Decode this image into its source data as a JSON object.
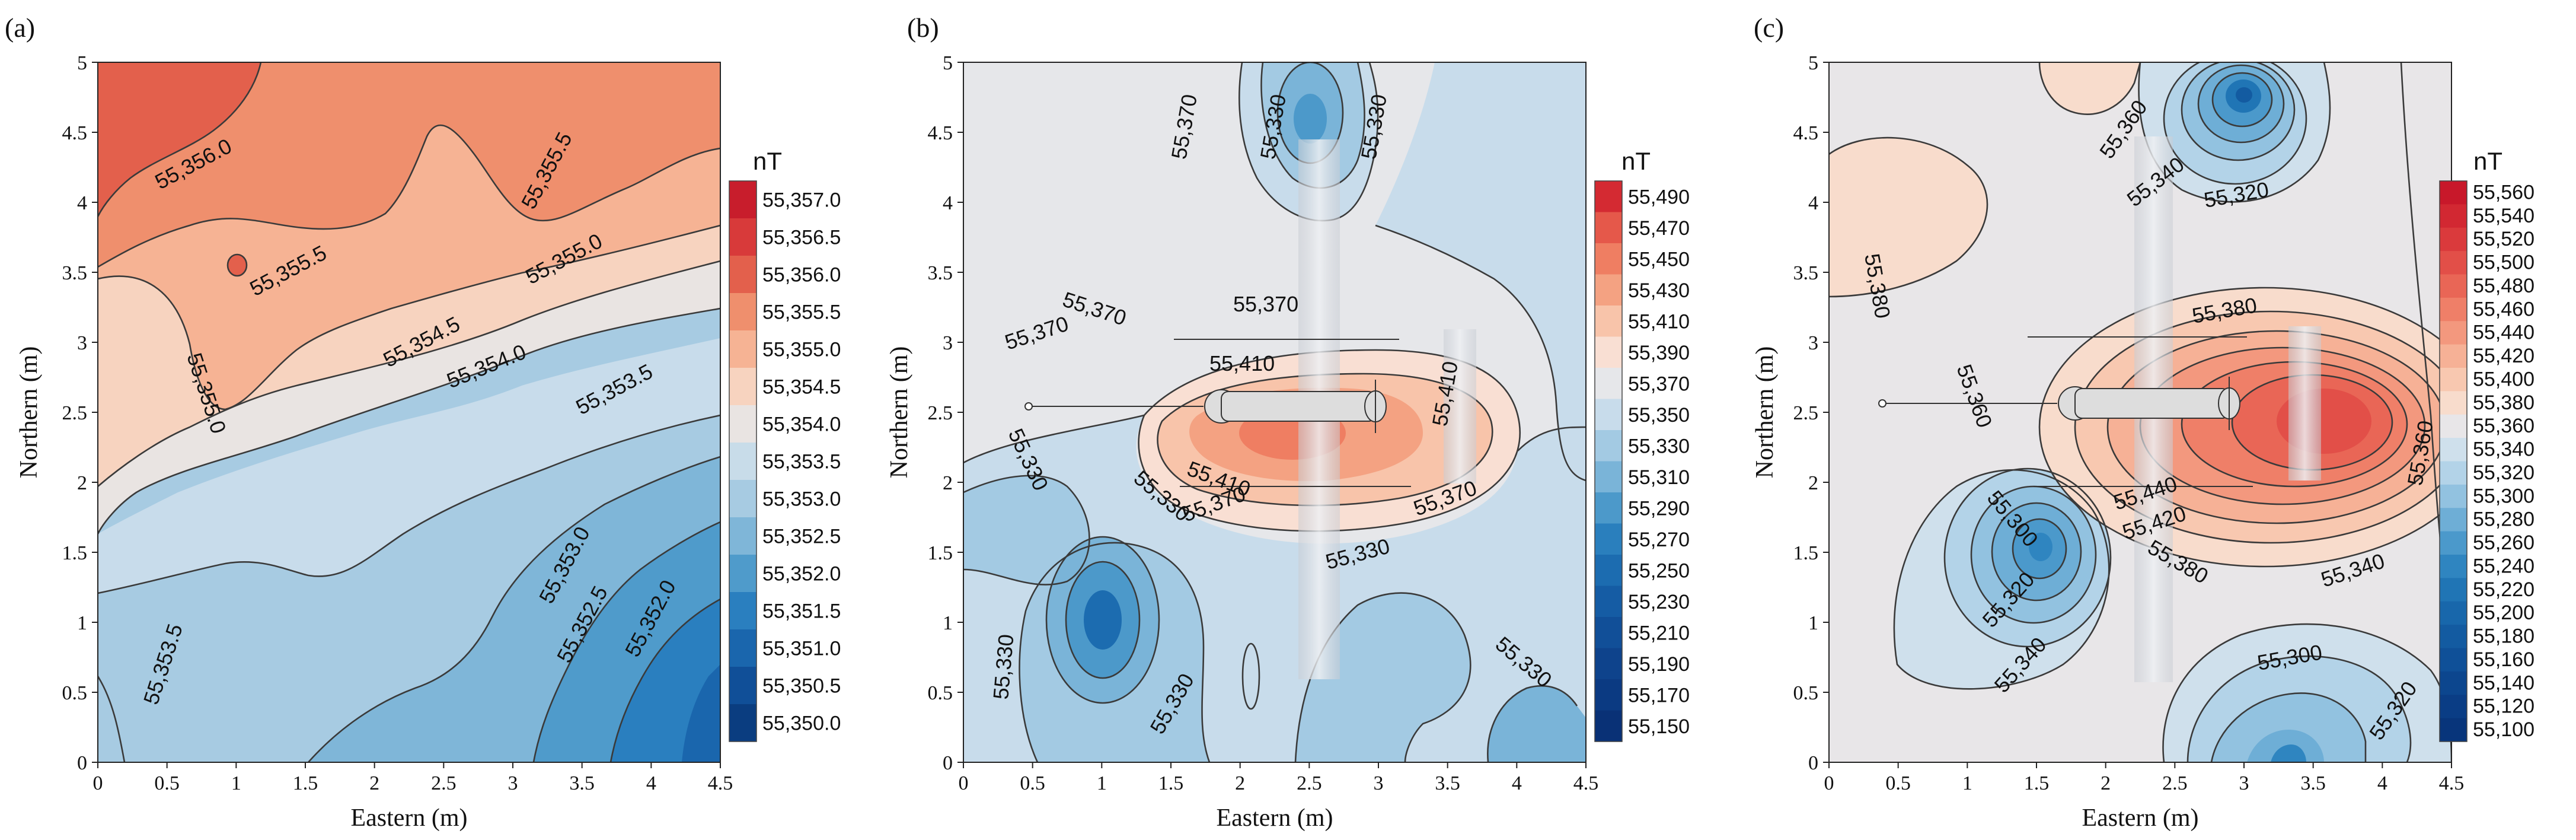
{
  "chart_data": [
    {
      "type": "contour",
      "panel_label": "(a)",
      "xlabel": "Eastern (m)",
      "ylabel": "Northern (m)",
      "xlim": [
        0,
        4.5
      ],
      "ylim": [
        0,
        5
      ],
      "x_ticks": [
        "0",
        "0.5",
        "1",
        "1.5",
        "2",
        "2.5",
        "3",
        "3.5",
        "4",
        "4.5"
      ],
      "y_ticks": [
        "0",
        "0.5",
        "1",
        "1.5",
        "2",
        "2.5",
        "3",
        "3.5",
        "4",
        "4.5",
        "5"
      ],
      "colorbar": {
        "unit": "nT",
        "levels": [
          "55,357.0",
          "55,356.5",
          "55,356.0",
          "55,355.5",
          "55,355.0",
          "55,354.5",
          "55,354.0",
          "55,353.5",
          "55,353.0",
          "55,352.5",
          "55,352.0",
          "55,351.5",
          "55,351.0",
          "55,350.5",
          "55,350.0"
        ],
        "colors": [
          "#c81d2c",
          "#d83a3a",
          "#e3604c",
          "#ef8f6d",
          "#f6b394",
          "#f7d3bf",
          "#e9e4e2",
          "#c8dce9",
          "#a7cbe2",
          "#7fb6d8",
          "#4f9bcb",
          "#2a7fbf",
          "#1a66ad",
          "#104f98",
          "#0a3d80"
        ]
      },
      "contour_labels": [
        "55,356.0",
        "55,355.5",
        "55,355.5",
        "55,355.0",
        "55,355.0",
        "55,354.5",
        "55,354.0",
        "55,353.5",
        "55,353.0",
        "55,352.5",
        "55,352.0",
        "55,353.5"
      ]
    },
    {
      "type": "contour",
      "panel_label": "(b)",
      "xlabel": "Eastern (m)",
      "ylabel": "Northern (m)",
      "xlim": [
        0,
        4.5
      ],
      "ylim": [
        0,
        5
      ],
      "x_ticks": [
        "0",
        "0.5",
        "1",
        "1.5",
        "2",
        "2.5",
        "3",
        "3.5",
        "4",
        "4.5"
      ],
      "y_ticks": [
        "0",
        "0.5",
        "1",
        "1.5",
        "2",
        "2.5",
        "3",
        "3.5",
        "4",
        "4.5",
        "5"
      ],
      "colorbar": {
        "unit": "nT",
        "levels": [
          "55,490",
          "55,470",
          "55,450",
          "55,430",
          "55,410",
          "55,390",
          "55,370",
          "55,350",
          "55,330",
          "55,310",
          "55,290",
          "55,270",
          "55,250",
          "55,230",
          "55,210",
          "55,190",
          "55,170",
          "55,150"
        ],
        "colors": [
          "#d42a32",
          "#e5584a",
          "#ef7e62",
          "#f4a282",
          "#f8c4aa",
          "#f9dfd3",
          "#e6e7ea",
          "#c8dceb",
          "#a3cae3",
          "#7ab4d8",
          "#4c99ca",
          "#2a7fbd",
          "#1c6cb0",
          "#155ca4",
          "#114f98",
          "#0e438c",
          "#0b3a82",
          "#093176"
        ]
      },
      "contour_labels": [
        "55,370",
        "55,330",
        "55,330",
        "55,370",
        "55,370",
        "55,370",
        "55,410",
        "55,410",
        "55,330",
        "55,330",
        "55,370",
        "55,410",
        "55,370",
        "55,330",
        "55,330",
        "55,330",
        "55,330"
      ]
    },
    {
      "type": "contour",
      "panel_label": "(c)",
      "xlabel": "Eastern (m)",
      "ylabel": "Northern (m)",
      "xlim": [
        0,
        4.5
      ],
      "ylim": [
        0,
        5
      ],
      "x_ticks": [
        "0",
        "0.5",
        "1",
        "1.5",
        "2",
        "2.5",
        "3",
        "3.5",
        "4",
        "4.5"
      ],
      "y_ticks": [
        "0",
        "0.5",
        "1",
        "1.5",
        "2",
        "2.5",
        "3",
        "3.5",
        "4",
        "4.5",
        "5"
      ],
      "colorbar": {
        "unit": "nT",
        "levels": [
          "55,560",
          "55,540",
          "55,520",
          "55,500",
          "55,480",
          "55,460",
          "55,440",
          "55,420",
          "55,400",
          "55,380",
          "55,360",
          "55,340",
          "55,320",
          "55,300",
          "55,280",
          "55,260",
          "55,240",
          "55,220",
          "55,200",
          "55,180",
          "55,160",
          "55,140",
          "55,120",
          "55,100"
        ],
        "colors": [
          "#c8182a",
          "#d22832",
          "#da3a3c",
          "#e24f48",
          "#e96656",
          "#ef7f68",
          "#f3987e",
          "#f6b196",
          "#f8c8b0",
          "#f8dccc",
          "#e8e6e8",
          "#cfe0ec",
          "#b3d3e8",
          "#92c2e0",
          "#6eaed6",
          "#4b99cb",
          "#2f85c0",
          "#2075b5",
          "#1867ab",
          "#135ba1",
          "#0f5098",
          "#0c468e",
          "#0a3d85",
          "#08357b"
        ]
      },
      "contour_labels": [
        "55,360",
        "55,380",
        "55,340",
        "55,320",
        "55,380",
        "55,360",
        "55,300",
        "55,440",
        "55,420",
        "55,380",
        "55,320",
        "55,340",
        "55,340",
        "55,300",
        "55,360",
        "55,320"
      ]
    }
  ]
}
